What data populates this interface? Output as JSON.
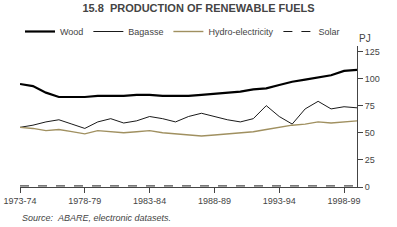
{
  "chart_data": {
    "type": "line",
    "title": "15.8  PRODUCTION OF RENEWABLE FUELS",
    "ylabel": "PJ",
    "annotations": [
      "Source:  ABARE, electronic datasets."
    ],
    "categories": [
      "1973-74",
      null,
      null,
      null,
      null,
      "1978-79",
      null,
      null,
      null,
      null,
      "1983-84",
      null,
      null,
      null,
      null,
      "1988-89",
      null,
      null,
      null,
      null,
      "1993-94",
      null,
      null,
      null,
      null,
      "1998-99",
      null
    ],
    "series": [
      {
        "name": "Wood",
        "color": "#000000",
        "line_style": "solid",
        "values": [
          95,
          93,
          87,
          83,
          83,
          83,
          84,
          84,
          84,
          85,
          85,
          84,
          84,
          84,
          85,
          86,
          87,
          88,
          90,
          91,
          94,
          97,
          99,
          101,
          103,
          107,
          108
        ]
      },
      {
        "name": "Bagasse",
        "color": "#000000",
        "line_style": "solid",
        "values": [
          55,
          57,
          60,
          62,
          58,
          54,
          60,
          63,
          59,
          61,
          65,
          63,
          60,
          65,
          68,
          65,
          62,
          60,
          63,
          75,
          65,
          58,
          72,
          79,
          72,
          74,
          73
        ]
      },
      {
        "name": "Hydro-electricity",
        "color": "#a09060",
        "line_style": "solid",
        "values": [
          55,
          54,
          52,
          53,
          51,
          49,
          52,
          51,
          50,
          51,
          52,
          50,
          49,
          48,
          47,
          48,
          49,
          50,
          51,
          53,
          55,
          57,
          58,
          60,
          59,
          60,
          61
        ]
      },
      {
        "name": "Solar",
        "color": "#000000",
        "line_style": "dashed",
        "values": [
          1,
          1,
          1,
          1,
          1,
          1,
          1,
          1,
          1,
          1,
          1,
          1,
          1,
          1,
          1,
          1,
          1,
          1,
          1,
          1,
          1,
          1,
          1,
          1,
          1,
          1,
          1
        ]
      }
    ],
    "ylim": [
      0,
      130
    ],
    "yticks": [
      0,
      25,
      50,
      75,
      100,
      125
    ],
    "grid": false,
    "legend": "upper left"
  }
}
